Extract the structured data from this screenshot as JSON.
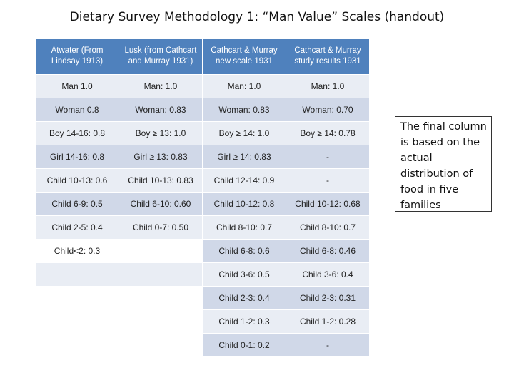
{
  "title": "Dietary Survey Methodology 1: “Man Value” Scales (handout)",
  "table": {
    "headers": [
      "Atwater (From Lindsay 1913)",
      "Lusk (from Cathcart and Murray 1931)",
      "Cathcart & Murray new scale 1931",
      "Cathcart & Murray study results 1931"
    ],
    "rows": [
      [
        "Man 1.0",
        "Man: 1.0",
        "Man: 1.0",
        "Man: 1.0"
      ],
      [
        "Woman 0.8",
        "Woman: 0.83",
        "Woman: 0.83",
        "Woman: 0.70"
      ],
      [
        "Boy 14-16: 0.8",
        "Boy ≥ 13: 1.0",
        "Boy ≥ 14: 1.0",
        "Boy ≥ 14: 0.78"
      ],
      [
        "Girl 14-16: 0.8",
        "Girl ≥ 13: 0.83",
        "Girl ≥ 14: 0.83",
        "-"
      ],
      [
        "Child 10-13: 0.6",
        "Child 10-13: 0.83",
        "Child 12-14: 0.9",
        "-"
      ],
      [
        "Child 6-9: 0.5",
        "Child 6-10: 0.60",
        "Child 10-12: 0.8",
        "Child 10-12: 0.68"
      ],
      [
        "Child 2-5: 0.4",
        "Child 0-7: 0.50",
        "Child 8-10: 0.7",
        "Child 8-10: 0.7"
      ],
      [
        "Child<2: 0.3",
        "",
        "Child 6-8: 0.6",
        "Child 6-8: 0.46"
      ],
      [
        "",
        "",
        "Child 3-6: 0.5",
        "Child 3-6: 0.4"
      ],
      [
        "",
        "",
        "Child 2-3: 0.4",
        "Child 2-3: 0.31"
      ],
      [
        "",
        "",
        "Child 1-2: 0.3",
        "Child 1-2: 0.28"
      ],
      [
        "",
        "",
        "Child 0-1: 0.2",
        "-"
      ]
    ]
  },
  "note": "The final column is based on the actual distribution of food in five families"
}
